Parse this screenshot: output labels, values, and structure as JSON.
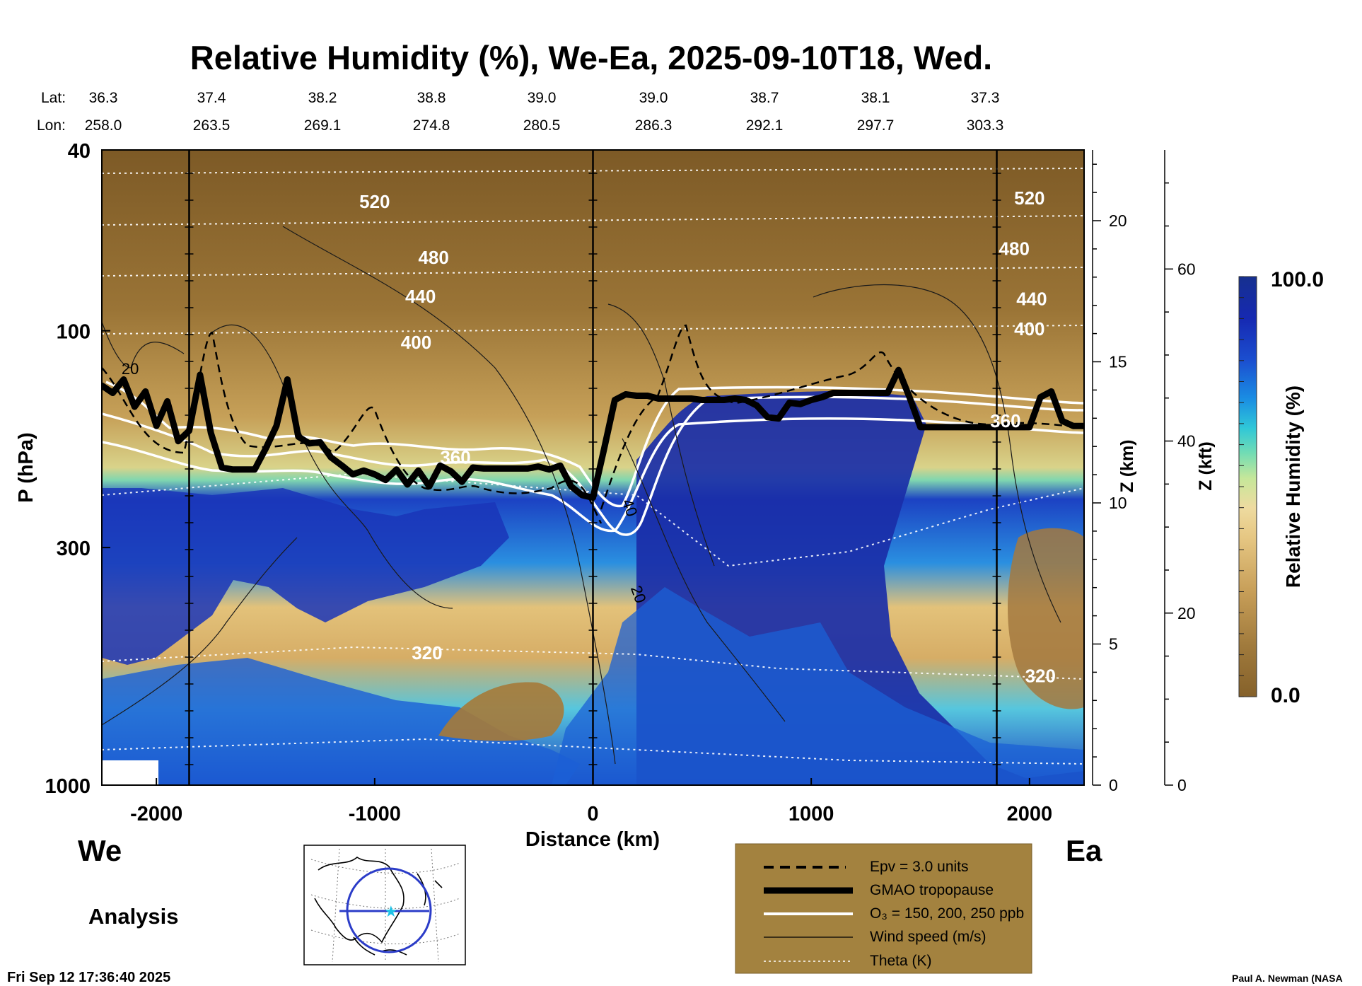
{
  "chart_data": {
    "type": "heatmap",
    "title": "Relative Humidity (%), We-Ea, 2025-09-10T18, Wed.",
    "xlabel": "Distance (km)",
    "ylabel": "P (hPa)",
    "xlim": [
      -2250,
      2250
    ],
    "x_ticks": [
      -2000,
      -1000,
      0,
      1000,
      2000
    ],
    "x_tick_labels": [
      "-2000",
      "-1000",
      "0",
      "1000",
      "2000"
    ],
    "y_scale": "log",
    "ylim": [
      1000,
      40
    ],
    "y_ticks": [
      40,
      100,
      300,
      1000
    ],
    "y_tick_labels": [
      "40",
      "100",
      "300",
      "1000"
    ],
    "z_km_label": "Z (km)",
    "z_km_ticks": [
      0,
      5,
      10,
      15,
      20
    ],
    "z_kft_label": "Z (kft)",
    "z_kft_ticks": [
      0,
      20,
      40,
      60
    ],
    "lat_label": "Lat:",
    "lon_label": "Lon:",
    "lat_values": [
      "36.3",
      "37.4",
      "38.2",
      "38.8",
      "39.0",
      "39.0",
      "38.7",
      "38.1",
      "37.3"
    ],
    "lon_values": [
      "258.0",
      "263.5",
      "269.1",
      "274.8",
      "280.5",
      "286.3",
      "292.1",
      "297.7",
      "303.3"
    ],
    "colorbar": {
      "label": "Relative Humidity (%)",
      "min_label": "0.0",
      "max_label": "100.0",
      "range": [
        0,
        100
      ]
    },
    "theta_contour_labels": [
      {
        "x": -1000,
        "p": 52,
        "text": "520"
      },
      {
        "x": 2000,
        "p": 51,
        "text": "520"
      },
      {
        "x": -730,
        "p": 69,
        "text": "480"
      },
      {
        "x": 1930,
        "p": 66,
        "text": "480"
      },
      {
        "x": -790,
        "p": 84,
        "text": "440"
      },
      {
        "x": 2010,
        "p": 85,
        "text": "440"
      },
      {
        "x": -810,
        "p": 106,
        "text": "400"
      },
      {
        "x": 2000,
        "p": 99,
        "text": "400"
      },
      {
        "x": -630,
        "p": 190,
        "text": "360"
      },
      {
        "x": 1890,
        "p": 158,
        "text": "360"
      },
      {
        "x": -760,
        "p": 512,
        "text": "320"
      },
      {
        "x": 2050,
        "p": 575,
        "text": "320"
      }
    ],
    "wind_contour_labels": [
      {
        "x": -2120,
        "p": 121,
        "text": "20"
      },
      {
        "x": 170,
        "p": 245,
        "text": "40"
      },
      {
        "x": 210,
        "p": 380,
        "text": "20"
      }
    ],
    "series": [
      {
        "name": "GMAO tropopause",
        "x": [
          -2250,
          -2200,
          -2150,
          -2100,
          -2050,
          -2000,
          -1950,
          -1900,
          -1850,
          -1800,
          -1750,
          -1700,
          -1650,
          -1600,
          -1550,
          -1500,
          -1450,
          -1400,
          -1350,
          -1300,
          -1250,
          -1200,
          -1150,
          -1100,
          -1050,
          -1000,
          -950,
          -900,
          -850,
          -800,
          -750,
          -700,
          -650,
          -600,
          -550,
          -500,
          -450,
          -400,
          -350,
          -300,
          -250,
          -200,
          -150,
          -100,
          -50,
          0,
          50,
          100,
          150,
          200,
          250,
          300,
          350,
          400,
          450,
          500,
          550,
          600,
          650,
          700,
          750,
          800,
          850,
          900,
          950,
          1000,
          1050,
          1100,
          1150,
          1200,
          1250,
          1300,
          1350,
          1400,
          1450,
          1500,
          1550,
          1600,
          1650,
          1700,
          1750,
          1800,
          1850,
          1900,
          1950,
          2000,
          2050,
          2100,
          2150,
          2200,
          2250
        ],
        "p": [
          132,
          137,
          128,
          147,
          136,
          162,
          143,
          175,
          166,
          125,
          168,
          200,
          202,
          202,
          202,
          182,
          162,
          128,
          171,
          177,
          176,
          190,
          198,
          207,
          203,
          207,
          213,
          202,
          218,
          203,
          220,
          198,
          204,
          215,
          200,
          201,
          201,
          201,
          201,
          201,
          199,
          202,
          198,
          220,
          230,
          233,
          183,
          142,
          138,
          139,
          139,
          141,
          141,
          141,
          141,
          142,
          142,
          142,
          141,
          142,
          146,
          155,
          156,
          144,
          145,
          142,
          140,
          137,
          137,
          137,
          137,
          137,
          137,
          122,
          140,
          163,
          163,
          163,
          163,
          163,
          163,
          163,
          163,
          163,
          163,
          163,
          140,
          136,
          158,
          162,
          162
        ]
      },
      {
        "name": "Epv = 3.0 units"
      },
      {
        "name": "O3 = 150, 200, 250 ppb"
      },
      {
        "name": "Wind speed (m/s)"
      },
      {
        "name": "Theta (K)",
        "theta_levels": [
          320,
          360,
          400,
          440,
          480,
          520
        ]
      }
    ],
    "legend": {
      "placement": "bottom-right",
      "entries": [
        {
          "style": "dashed",
          "label": "Epv = 3.0 units"
        },
        {
          "style": "thick",
          "label": "GMAO tropopause"
        },
        {
          "style": "white",
          "label": "O₃ = 150, 200, 250 ppb"
        },
        {
          "style": "thin",
          "label": "Wind speed (m/s)"
        },
        {
          "style": "dotted",
          "label": "Theta (K)"
        }
      ]
    },
    "vertical_markers_km": [
      -1850,
      0,
      1850
    ]
  },
  "labels": {
    "west": "We",
    "east": "Ea",
    "analysis": "Analysis",
    "timestamp": "Fri Sep 12 17:36:40 2025",
    "credit": "Paul A. Newman (NASA"
  },
  "colors": {
    "dry": "#85612a",
    "moist": "#16308f",
    "legend_bg": "#a3823f"
  }
}
